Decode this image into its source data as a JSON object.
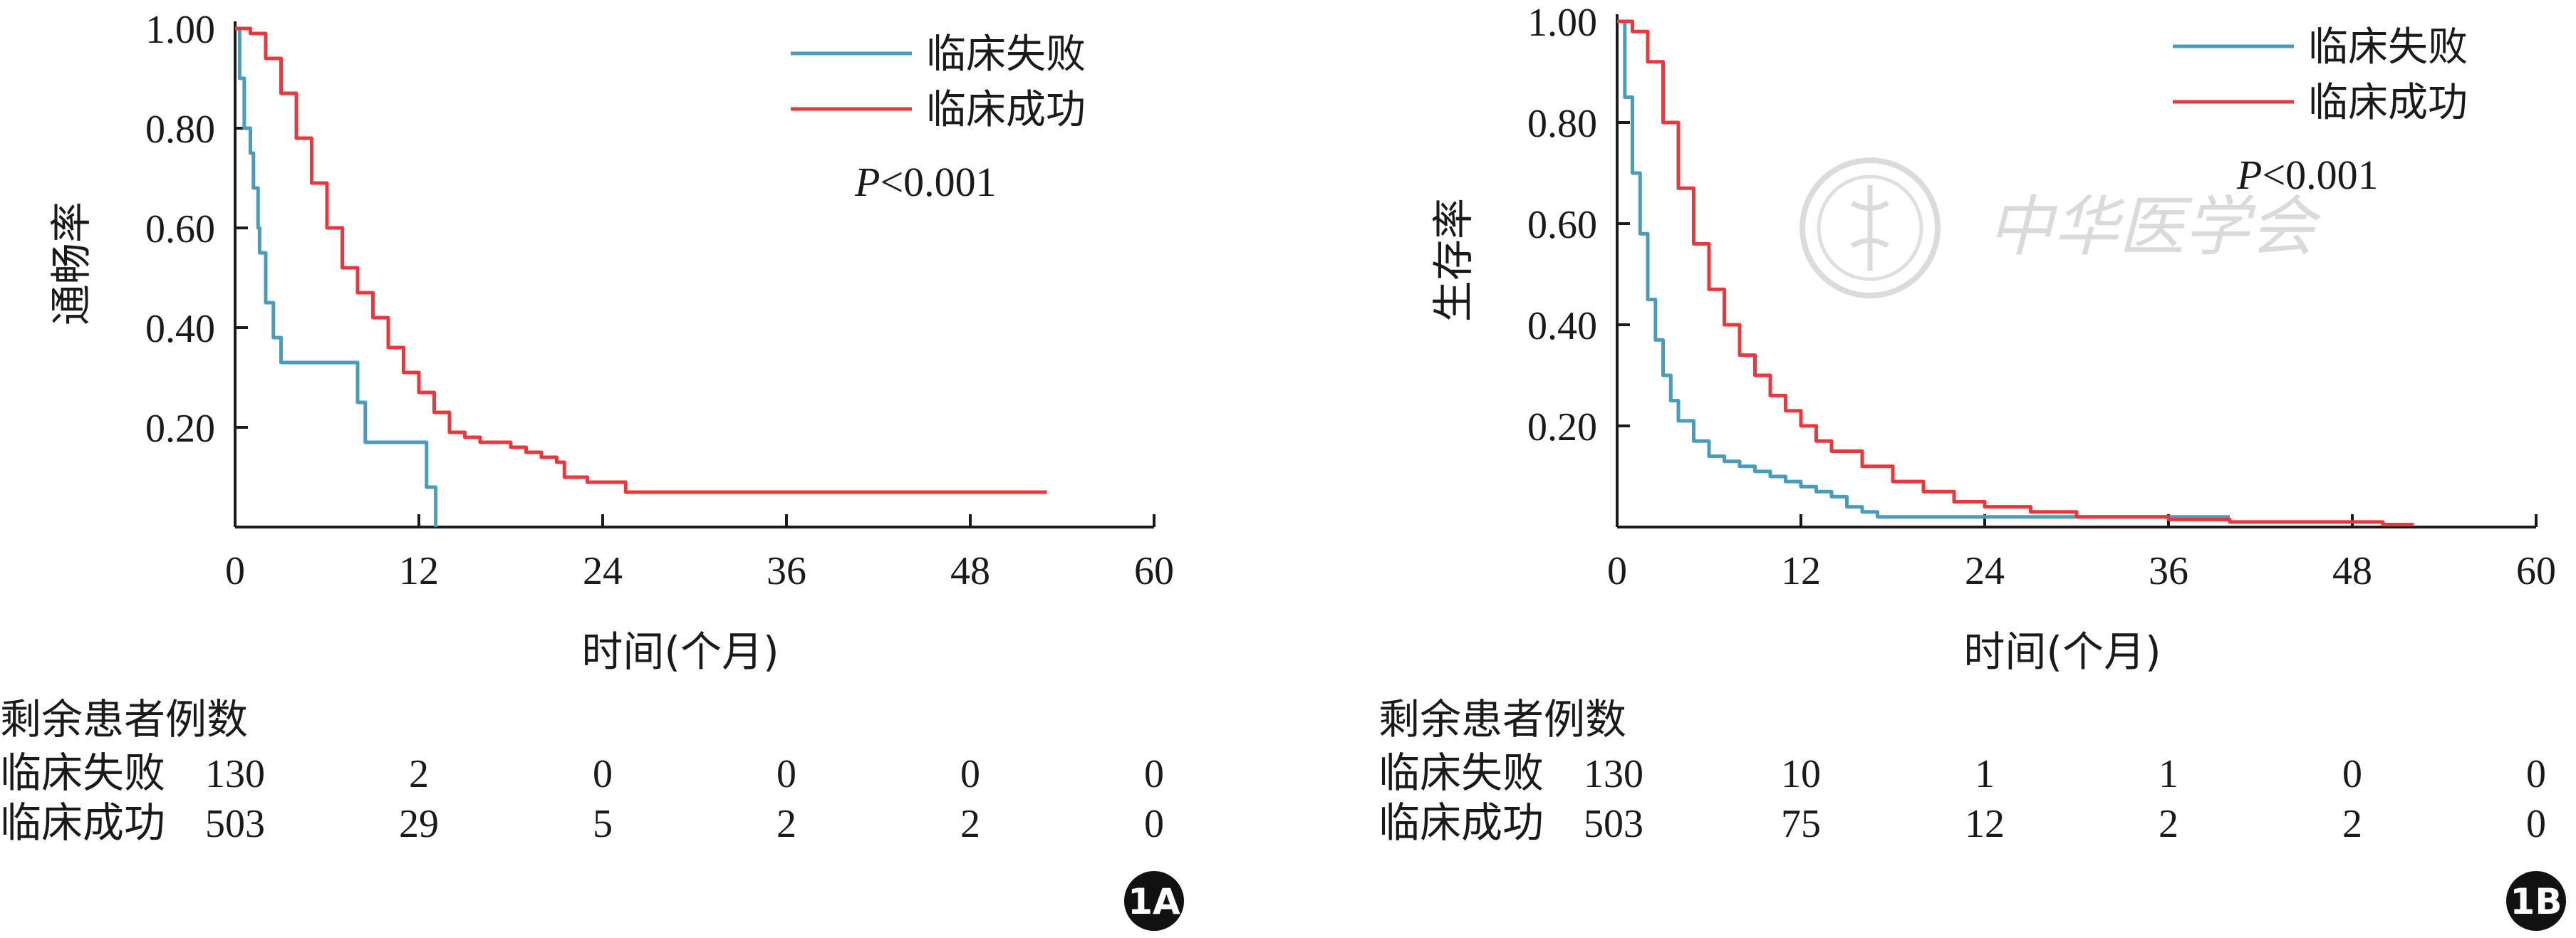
{
  "chart_data": [
    {
      "type": "line",
      "panel": "1A",
      "xlabel": "时间(个月)",
      "ylabel": "通畅率",
      "xlim": [
        0,
        60
      ],
      "ylim": [
        0,
        1.0
      ],
      "x_ticks": [
        "0",
        "12",
        "24",
        "36",
        "48",
        "60"
      ],
      "y_ticks": [
        "1.00",
        "0.80",
        "0.60",
        "0.40",
        "0.20"
      ],
      "legend_position": "top-right",
      "annotation_prefix": "P",
      "annotation_suffix": "<0.001",
      "series": [
        {
          "name": "临床失败",
          "color": "#4a9cbd",
          "x": [
            0,
            0.3,
            0.6,
            1.0,
            1.2,
            1.5,
            1.6,
            2.0,
            2.0,
            2.5,
            2.5,
            3.0,
            3.0,
            3.5,
            3.5,
            8.0,
            8.0,
            8.5,
            8.5,
            12.5,
            12.5,
            13.1,
            13.1
          ],
          "y": [
            1.0,
            0.9,
            0.8,
            0.75,
            0.68,
            0.6,
            0.55,
            0.5,
            0.45,
            0.4,
            0.38,
            0.35,
            0.33,
            0.33,
            0.33,
            0.33,
            0.25,
            0.25,
            0.17,
            0.17,
            0.08,
            0.08,
            0.0
          ]
        },
        {
          "name": "临床成功",
          "color": "#e8373d",
          "x": [
            0,
            1,
            2,
            3,
            4,
            5,
            6,
            7,
            8,
            9,
            10,
            11,
            12,
            13,
            14,
            15,
            16,
            17,
            18,
            19,
            20,
            21,
            21.5,
            22,
            23,
            24,
            25,
            25.5,
            30,
            36,
            48,
            53
          ],
          "y": [
            1.0,
            0.99,
            0.94,
            0.87,
            0.78,
            0.69,
            0.6,
            0.52,
            0.47,
            0.42,
            0.36,
            0.31,
            0.27,
            0.23,
            0.19,
            0.18,
            0.17,
            0.17,
            0.16,
            0.15,
            0.14,
            0.13,
            0.1,
            0.1,
            0.09,
            0.09,
            0.09,
            0.07,
            0.07,
            0.07,
            0.07,
            0.07
          ]
        }
      ],
      "risk_table": {
        "title": "剩余患者例数",
        "rows": [
          {
            "label": "临床失败",
            "values": [
              "130",
              "2",
              "0",
              "0",
              "0",
              "0"
            ]
          },
          {
            "label": "临床成功",
            "values": [
              "503",
              "29",
              "5",
              "2",
              "2",
              "0"
            ]
          }
        ]
      },
      "badge": "1A"
    },
    {
      "type": "line",
      "panel": "1B",
      "xlabel": "时间(个月)",
      "ylabel": "生存率",
      "xlim": [
        0,
        60
      ],
      "ylim": [
        0,
        1.0
      ],
      "x_ticks": [
        "0",
        "12",
        "24",
        "36",
        "48",
        "60"
      ],
      "y_ticks": [
        "1.00",
        "0.80",
        "0.60",
        "0.40",
        "0.20"
      ],
      "legend_position": "top-right",
      "annotation_prefix": "P",
      "annotation_suffix": "<0.001",
      "series": [
        {
          "name": "临床失败",
          "color": "#4a9cbd",
          "x": [
            0,
            0.5,
            1.0,
            1.5,
            2.0,
            2.5,
            3.0,
            3.5,
            4.0,
            5.0,
            6.0,
            7.0,
            8.0,
            9.0,
            10.0,
            11.0,
            12.0,
            13.0,
            14.0,
            15.0,
            16.0,
            17.0,
            18.0,
            24.0,
            30.0,
            36.0,
            40.0
          ],
          "y": [
            1.0,
            0.85,
            0.7,
            0.58,
            0.45,
            0.37,
            0.3,
            0.25,
            0.21,
            0.17,
            0.14,
            0.13,
            0.12,
            0.11,
            0.1,
            0.09,
            0.08,
            0.07,
            0.06,
            0.04,
            0.03,
            0.02,
            0.02,
            0.02,
            0.02,
            0.02,
            0.02
          ]
        },
        {
          "name": "临床成功",
          "color": "#e8373d",
          "x": [
            0,
            1,
            2,
            3,
            4,
            5,
            6,
            7,
            8,
            9,
            10,
            11,
            12,
            13,
            14,
            16,
            18,
            20,
            22,
            24,
            27,
            30,
            33,
            36,
            40,
            44,
            48,
            50,
            52
          ],
          "y": [
            1.0,
            0.98,
            0.92,
            0.8,
            0.67,
            0.56,
            0.47,
            0.4,
            0.34,
            0.3,
            0.26,
            0.23,
            0.2,
            0.17,
            0.15,
            0.12,
            0.09,
            0.07,
            0.05,
            0.04,
            0.03,
            0.02,
            0.02,
            0.015,
            0.01,
            0.01,
            0.01,
            0.005,
            0.005
          ]
        }
      ],
      "risk_table": {
        "title": "剩余患者例数",
        "rows": [
          {
            "label": "临床失败",
            "values": [
              "130",
              "10",
              "1",
              "1",
              "0",
              "0"
            ]
          },
          {
            "label": "临床成功",
            "values": [
              "503",
              "75",
              "12",
              "2",
              "2",
              "0"
            ]
          }
        ]
      },
      "badge": "1B"
    }
  ],
  "watermark": {
    "text": "中华医学会"
  }
}
